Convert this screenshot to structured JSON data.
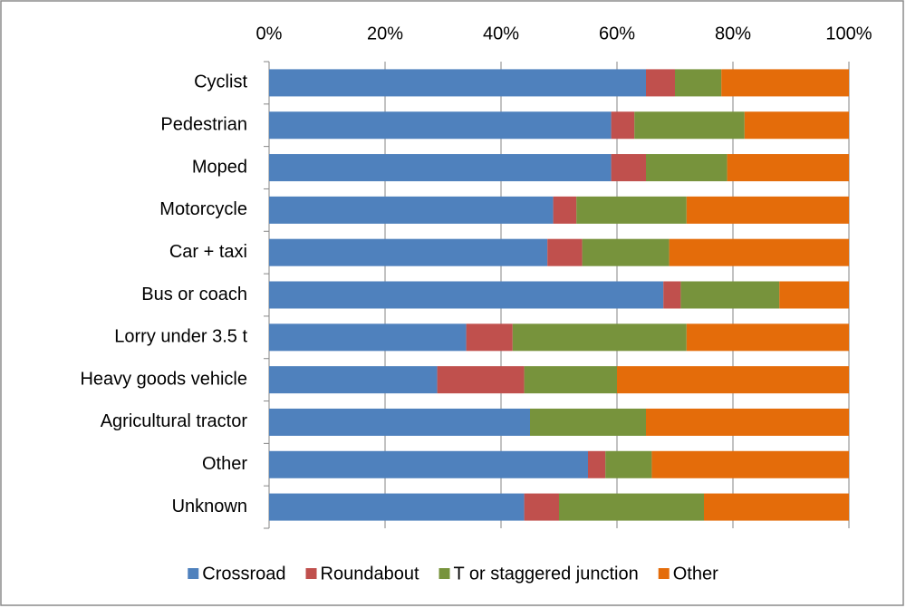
{
  "chart_data": {
    "type": "bar",
    "orientation": "horizontal",
    "stacked": true,
    "categories": [
      "Cyclist",
      "Pedestrian",
      "Moped",
      "Motorcycle",
      "Car + taxi",
      "Bus or coach",
      "Lorry under 3.5 t",
      "Heavy goods vehicle",
      "Agricultural tractor",
      "Other",
      "Unknown"
    ],
    "series": [
      {
        "name": "Crossroad",
        "color": "#4f81bd",
        "values": [
          65,
          59,
          59,
          49,
          48,
          68,
          34,
          29,
          45,
          55,
          44
        ]
      },
      {
        "name": "Roundabout",
        "color": "#c0504d",
        "values": [
          5,
          4,
          6,
          4,
          6,
          3,
          8,
          15,
          0,
          3,
          6
        ]
      },
      {
        "name": "T or staggered junction",
        "color": "#77933c",
        "values": [
          8,
          19,
          14,
          19,
          15,
          17,
          30,
          16,
          20,
          8,
          25
        ]
      },
      {
        "name": "Other",
        "color": "#e46c0a",
        "values": [
          22,
          18,
          21,
          28,
          31,
          12,
          28,
          40,
          35,
          34,
          25
        ]
      }
    ],
    "xlim": [
      0,
      100
    ],
    "xticks": [
      {
        "value": 0,
        "label": "0%"
      },
      {
        "value": 20,
        "label": "20%"
      },
      {
        "value": 40,
        "label": "40%"
      },
      {
        "value": 60,
        "label": "60%"
      },
      {
        "value": 80,
        "label": "80%"
      },
      {
        "value": 100,
        "label": "100%"
      }
    ],
    "grid": true,
    "legend": "bottom"
  }
}
